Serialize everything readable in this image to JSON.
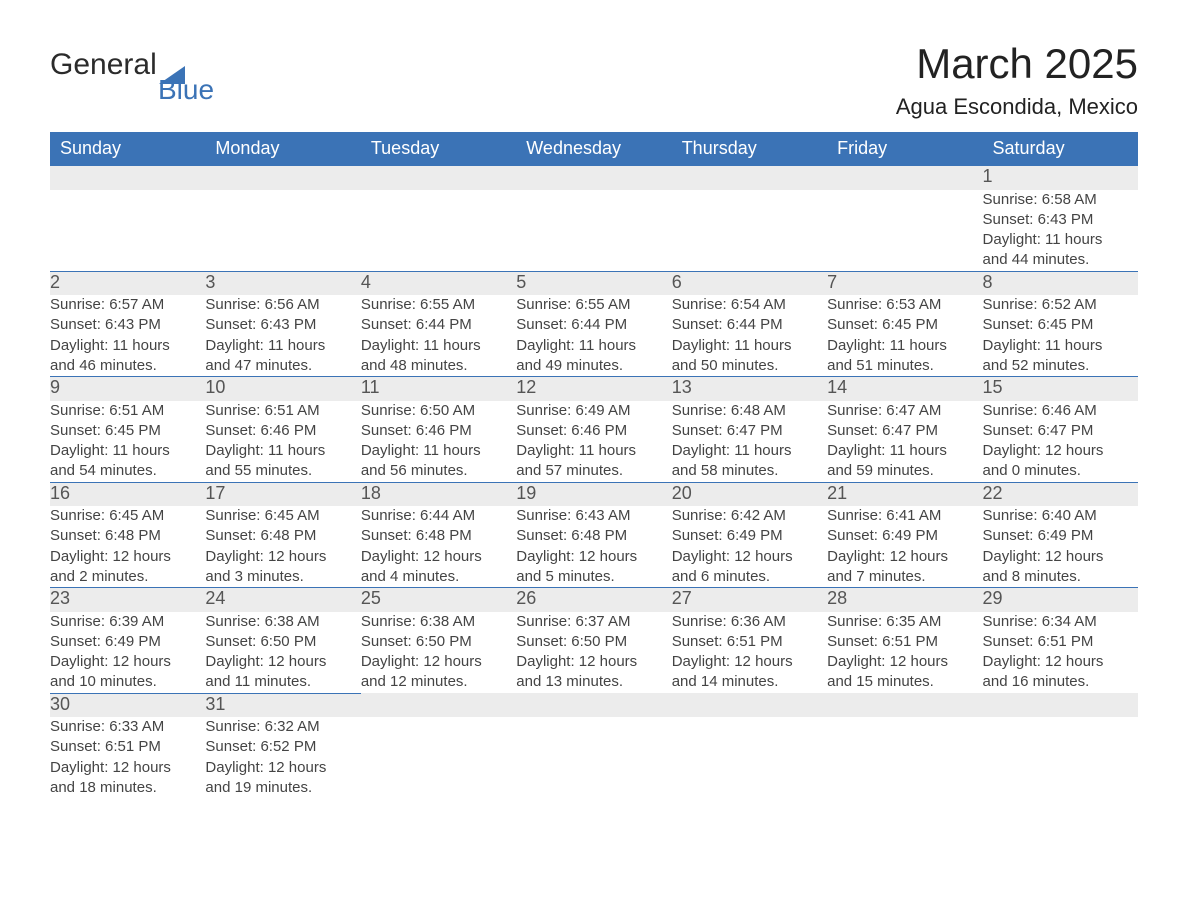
{
  "logo": {
    "word1": "General",
    "word2": "Blue",
    "triangle_color": "#3b73b6"
  },
  "title": "March 2025",
  "location": "Agua Escondida, Mexico",
  "colors": {
    "header_bg": "#3b73b6",
    "header_text": "#ffffff",
    "daynum_bg": "#ececec",
    "row_border": "#3b73b6",
    "body_text": "#444444",
    "page_bg": "#ffffff"
  },
  "typography": {
    "title_fontsize": 42,
    "location_fontsize": 22,
    "header_fontsize": 18,
    "daynum_fontsize": 18,
    "data_fontsize": 15
  },
  "day_labels": [
    "Sunday",
    "Monday",
    "Tuesday",
    "Wednesday",
    "Thursday",
    "Friday",
    "Saturday"
  ],
  "weeks": [
    [
      null,
      null,
      null,
      null,
      null,
      null,
      {
        "n": "1",
        "sunrise": "6:58 AM",
        "sunset": "6:43 PM",
        "dl1": "11 hours",
        "dl2": "and 44 minutes."
      }
    ],
    [
      {
        "n": "2",
        "sunrise": "6:57 AM",
        "sunset": "6:43 PM",
        "dl1": "11 hours",
        "dl2": "and 46 minutes."
      },
      {
        "n": "3",
        "sunrise": "6:56 AM",
        "sunset": "6:43 PM",
        "dl1": "11 hours",
        "dl2": "and 47 minutes."
      },
      {
        "n": "4",
        "sunrise": "6:55 AM",
        "sunset": "6:44 PM",
        "dl1": "11 hours",
        "dl2": "and 48 minutes."
      },
      {
        "n": "5",
        "sunrise": "6:55 AM",
        "sunset": "6:44 PM",
        "dl1": "11 hours",
        "dl2": "and 49 minutes."
      },
      {
        "n": "6",
        "sunrise": "6:54 AM",
        "sunset": "6:44 PM",
        "dl1": "11 hours",
        "dl2": "and 50 minutes."
      },
      {
        "n": "7",
        "sunrise": "6:53 AM",
        "sunset": "6:45 PM",
        "dl1": "11 hours",
        "dl2": "and 51 minutes."
      },
      {
        "n": "8",
        "sunrise": "6:52 AM",
        "sunset": "6:45 PM",
        "dl1": "11 hours",
        "dl2": "and 52 minutes."
      }
    ],
    [
      {
        "n": "9",
        "sunrise": "6:51 AM",
        "sunset": "6:45 PM",
        "dl1": "11 hours",
        "dl2": "and 54 minutes."
      },
      {
        "n": "10",
        "sunrise": "6:51 AM",
        "sunset": "6:46 PM",
        "dl1": "11 hours",
        "dl2": "and 55 minutes."
      },
      {
        "n": "11",
        "sunrise": "6:50 AM",
        "sunset": "6:46 PM",
        "dl1": "11 hours",
        "dl2": "and 56 minutes."
      },
      {
        "n": "12",
        "sunrise": "6:49 AM",
        "sunset": "6:46 PM",
        "dl1": "11 hours",
        "dl2": "and 57 minutes."
      },
      {
        "n": "13",
        "sunrise": "6:48 AM",
        "sunset": "6:47 PM",
        "dl1": "11 hours",
        "dl2": "and 58 minutes."
      },
      {
        "n": "14",
        "sunrise": "6:47 AM",
        "sunset": "6:47 PM",
        "dl1": "11 hours",
        "dl2": "and 59 minutes."
      },
      {
        "n": "15",
        "sunrise": "6:46 AM",
        "sunset": "6:47 PM",
        "dl1": "12 hours",
        "dl2": "and 0 minutes."
      }
    ],
    [
      {
        "n": "16",
        "sunrise": "6:45 AM",
        "sunset": "6:48 PM",
        "dl1": "12 hours",
        "dl2": "and 2 minutes."
      },
      {
        "n": "17",
        "sunrise": "6:45 AM",
        "sunset": "6:48 PM",
        "dl1": "12 hours",
        "dl2": "and 3 minutes."
      },
      {
        "n": "18",
        "sunrise": "6:44 AM",
        "sunset": "6:48 PM",
        "dl1": "12 hours",
        "dl2": "and 4 minutes."
      },
      {
        "n": "19",
        "sunrise": "6:43 AM",
        "sunset": "6:48 PM",
        "dl1": "12 hours",
        "dl2": "and 5 minutes."
      },
      {
        "n": "20",
        "sunrise": "6:42 AM",
        "sunset": "6:49 PM",
        "dl1": "12 hours",
        "dl2": "and 6 minutes."
      },
      {
        "n": "21",
        "sunrise": "6:41 AM",
        "sunset": "6:49 PM",
        "dl1": "12 hours",
        "dl2": "and 7 minutes."
      },
      {
        "n": "22",
        "sunrise": "6:40 AM",
        "sunset": "6:49 PM",
        "dl1": "12 hours",
        "dl2": "and 8 minutes."
      }
    ],
    [
      {
        "n": "23",
        "sunrise": "6:39 AM",
        "sunset": "6:49 PM",
        "dl1": "12 hours",
        "dl2": "and 10 minutes."
      },
      {
        "n": "24",
        "sunrise": "6:38 AM",
        "sunset": "6:50 PM",
        "dl1": "12 hours",
        "dl2": "and 11 minutes."
      },
      {
        "n": "25",
        "sunrise": "6:38 AM",
        "sunset": "6:50 PM",
        "dl1": "12 hours",
        "dl2": "and 12 minutes."
      },
      {
        "n": "26",
        "sunrise": "6:37 AM",
        "sunset": "6:50 PM",
        "dl1": "12 hours",
        "dl2": "and 13 minutes."
      },
      {
        "n": "27",
        "sunrise": "6:36 AM",
        "sunset": "6:51 PM",
        "dl1": "12 hours",
        "dl2": "and 14 minutes."
      },
      {
        "n": "28",
        "sunrise": "6:35 AM",
        "sunset": "6:51 PM",
        "dl1": "12 hours",
        "dl2": "and 15 minutes."
      },
      {
        "n": "29",
        "sunrise": "6:34 AM",
        "sunset": "6:51 PM",
        "dl1": "12 hours",
        "dl2": "and 16 minutes."
      }
    ],
    [
      {
        "n": "30",
        "sunrise": "6:33 AM",
        "sunset": "6:51 PM",
        "dl1": "12 hours",
        "dl2": "and 18 minutes."
      },
      {
        "n": "31",
        "sunrise": "6:32 AM",
        "sunset": "6:52 PM",
        "dl1": "12 hours",
        "dl2": "and 19 minutes."
      },
      null,
      null,
      null,
      null,
      null
    ]
  ],
  "labels": {
    "sunrise": "Sunrise: ",
    "sunset": "Sunset: ",
    "daylight": "Daylight: "
  }
}
